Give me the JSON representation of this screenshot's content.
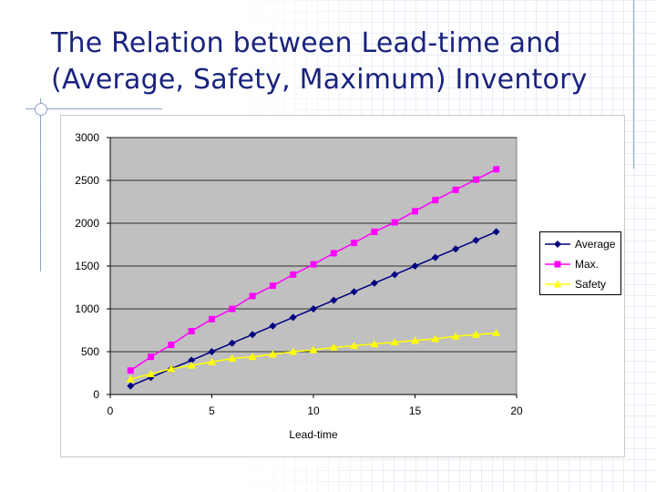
{
  "slide": {
    "title_line1": "The Relation between Lead-time and",
    "title_line2": "(Average, Safety, Maximum) Inventory"
  },
  "colors": {
    "title": "#1a237e",
    "plot_background": "#c0c0c0",
    "average": "#000080",
    "max": "#ff00ff",
    "safety": "#ffff00"
  },
  "chart_data": {
    "type": "line",
    "title": "",
    "xlabel": "Lead-time",
    "ylabel": "",
    "xlim": [
      0,
      20
    ],
    "ylim": [
      0,
      3000
    ],
    "xticks": [
      0,
      5,
      10,
      15,
      20
    ],
    "yticks": [
      0,
      500,
      1000,
      1500,
      2000,
      2500,
      3000
    ],
    "grid": "horizontal",
    "legend_position": "right",
    "x": [
      1,
      2,
      3,
      4,
      5,
      6,
      7,
      8,
      9,
      10,
      11,
      12,
      13,
      14,
      15,
      16,
      17,
      18,
      19
    ],
    "series": [
      {
        "name": "Average",
        "marker": "diamond",
        "color": "#000080",
        "values": [
          100,
          200,
          300,
          400,
          500,
          600,
          700,
          800,
          900,
          1000,
          1100,
          1200,
          1300,
          1400,
          1500,
          1600,
          1700,
          1800,
          1900
        ]
      },
      {
        "name": "Max.",
        "marker": "square",
        "color": "#ff00ff",
        "values": [
          280,
          440,
          580,
          740,
          880,
          1000,
          1150,
          1270,
          1400,
          1520,
          1650,
          1770,
          1900,
          2010,
          2140,
          2270,
          2390,
          2510,
          2630
        ]
      },
      {
        "name": "Safety",
        "marker": "triangle",
        "color": "#ffff00",
        "values": [
          180,
          240,
          300,
          340,
          380,
          420,
          440,
          470,
          500,
          520,
          550,
          570,
          590,
          610,
          630,
          650,
          680,
          700,
          720
        ]
      }
    ]
  }
}
